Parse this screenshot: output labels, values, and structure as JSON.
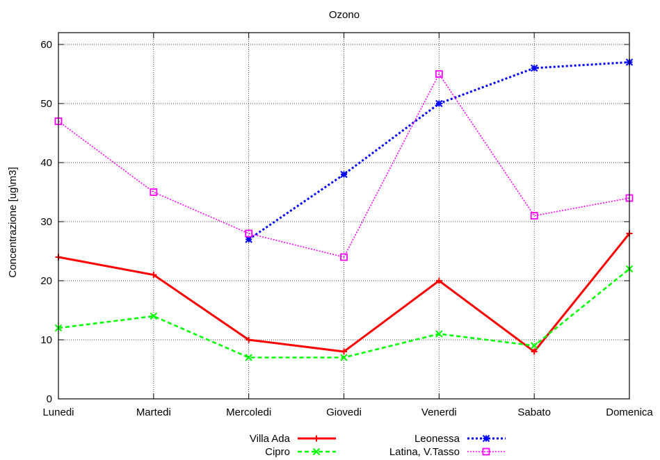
{
  "chart_data": {
    "type": "line",
    "title": "Ozono",
    "ylabel": "Concentrazione [ug\\m3]",
    "xlabel": "",
    "categories": [
      "Lunedi",
      "Martedi",
      "Mercoledi",
      "Giovedi",
      "Venerdi",
      "Sabato",
      "Domenica"
    ],
    "ylim": [
      0,
      62
    ],
    "yticks": [
      0,
      10,
      20,
      30,
      40,
      50,
      60
    ],
    "grid": true,
    "legend_position": "bottom",
    "series": [
      {
        "name": "Villa Ada",
        "color": "#ff0000",
        "marker": "plus",
        "dash": "solid",
        "values": [
          24,
          21,
          10,
          8,
          20,
          8,
          28
        ]
      },
      {
        "name": "Cipro",
        "color": "#00ff00",
        "marker": "cross",
        "dash": "dashed",
        "values": [
          12,
          14,
          7,
          7,
          11,
          9,
          22
        ]
      },
      {
        "name": "Leonessa",
        "color": "#0000ff",
        "marker": "star",
        "dash": "dotted",
        "values": [
          null,
          null,
          27,
          38,
          50,
          56,
          57
        ]
      },
      {
        "name": "Latina, V.Tasso",
        "color": "#ff00ff",
        "marker": "square",
        "dash": "dotted-fine",
        "values": [
          47,
          35,
          28,
          24,
          55,
          31,
          34
        ]
      }
    ]
  }
}
